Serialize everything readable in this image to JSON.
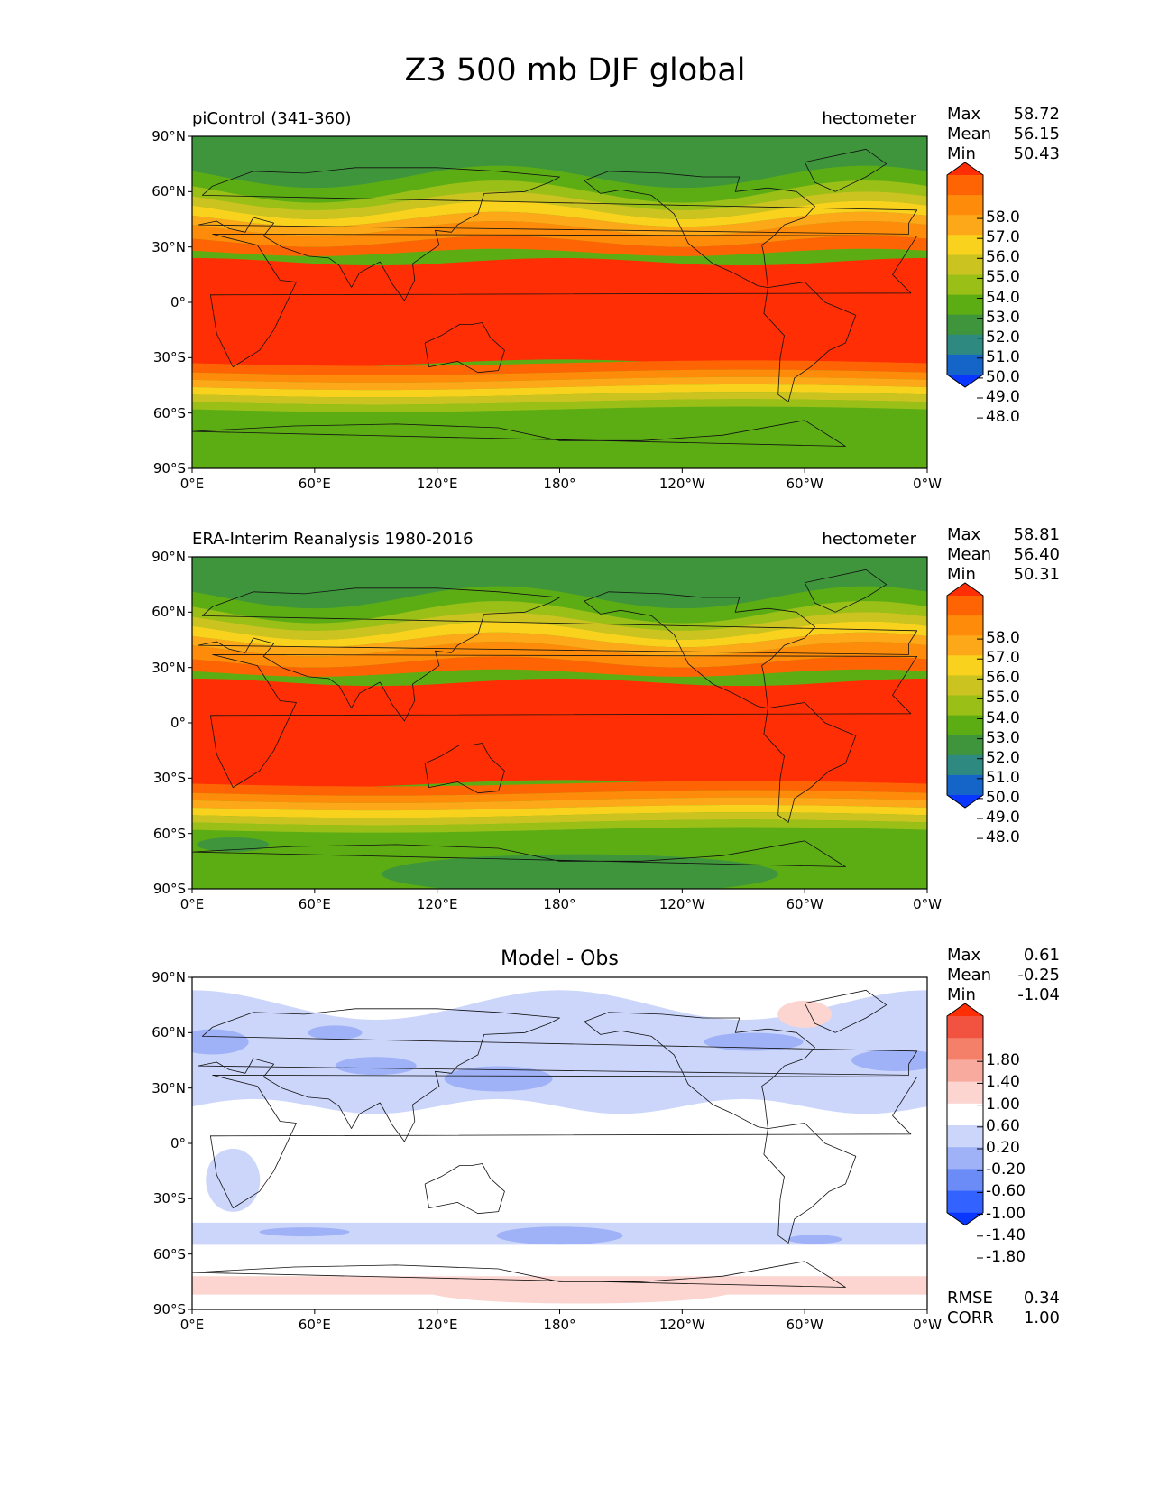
{
  "title": "Z3 500 mb DJF global",
  "x_ticks": [
    "0°E",
    "60°E",
    "120°E",
    "180°",
    "120°W",
    "60°W",
    "0°W"
  ],
  "y_ticks": [
    "90°N",
    "60°N",
    "30°N",
    "0°",
    "30°S",
    "60°S",
    "90°S"
  ],
  "colors": {
    "field": [
      "#0a37ff",
      "#1565c8",
      "#2e8a80",
      "#3f953c",
      "#5cad14",
      "#9ac018",
      "#cac320",
      "#f9d21e",
      "#fca818",
      "#fe8b09",
      "#fe6404",
      "#ff2e04"
    ],
    "diff": [
      "#0a37ff",
      "#3262ff",
      "#6b8bf7",
      "#9fb2f7",
      "#ccd6fb",
      "#ffffff",
      "#fcd4d0",
      "#f9aa9e",
      "#f5806a",
      "#f25240",
      "#ff2e04"
    ]
  },
  "panels": [
    {
      "left_label": "piControl (341-360)",
      "right_label": "hectometer",
      "stats": {
        "max_label": "Max",
        "max": "58.72",
        "mean_label": "Mean",
        "mean": "56.15",
        "min_label": "Min",
        "min": "50.43"
      },
      "colorbar": [
        "58.0",
        "57.0",
        "56.0",
        "55.0",
        "54.0",
        "53.0",
        "52.0",
        "51.0",
        "50.0",
        "49.0",
        "48.0"
      ]
    },
    {
      "left_label": "ERA-Interim Reanalysis 1980-2016",
      "right_label": "hectometer",
      "stats": {
        "max_label": "Max",
        "max": "58.81",
        "mean_label": "Mean",
        "mean": "56.40",
        "min_label": "Min",
        "min": "50.31"
      },
      "colorbar": [
        "58.0",
        "57.0",
        "56.0",
        "55.0",
        "54.0",
        "53.0",
        "52.0",
        "51.0",
        "50.0",
        "49.0",
        "48.0"
      ]
    },
    {
      "center_label": "Model - Obs",
      "stats": {
        "max_label": "Max",
        "max": "0.61",
        "mean_label": "Mean",
        "mean": "-0.25",
        "min_label": "Min",
        "min": "-1.04"
      },
      "colorbar": [
        "1.80",
        "1.40",
        "1.00",
        "0.60",
        "0.20",
        "-0.20",
        "-0.60",
        "-1.00",
        "-1.40",
        "-1.80"
      ],
      "rmse_label": "RMSE",
      "rmse": "0.34",
      "corr_label": "CORR",
      "corr": "1.00"
    }
  ]
}
